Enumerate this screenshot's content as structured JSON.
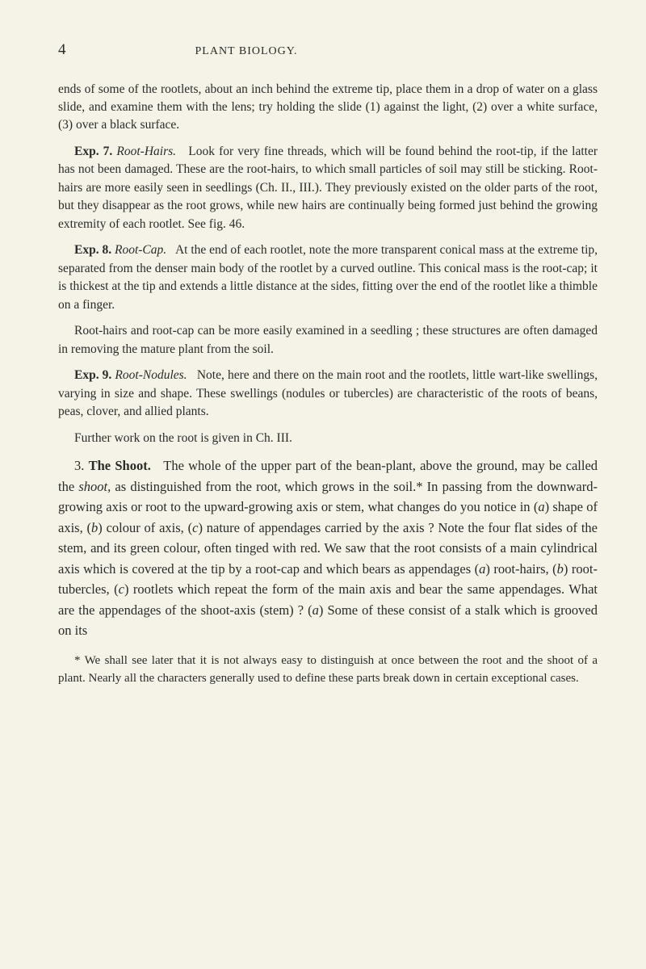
{
  "header": {
    "page_number": "4",
    "chapter_title": "PLANT BIOLOGY."
  },
  "para_intro": "ends of some of the rootlets, about an inch behind the extreme tip, place them in a drop of water on a glass slide, and examine them with the lens; try holding the slide (1) against the light, (2) over a white surface, (3) over a black surface.",
  "exp7": {
    "label": "Exp. 7.",
    "title": "Root-Hairs.",
    "text": "Look for very fine threads, which will be found behind the root-tip, if the latter has not been damaged. These are the root-hairs, to which small particles of soil may still be sticking. Root-hairs are more easily seen in seedlings (Ch. II., III.). They previously existed on the older parts of the root, but they disappear as the root grows, while new hairs are continually being formed just behind the growing extremity of each rootlet. See fig. 46."
  },
  "exp8": {
    "label": "Exp. 8.",
    "title": "Root-Cap.",
    "text1": "At the end of each rootlet, note the more transparent conical mass at the extreme tip, separated from the denser main body of the rootlet by a curved outline. This conical mass is the root-cap; it is thickest at the tip and extends a little distance at the sides, fitting over the end of the rootlet like a thimble on a finger.",
    "text2": "Root-hairs and root-cap can be more easily examined in a seedling ; these structures are often damaged in removing the mature plant from the soil."
  },
  "exp9": {
    "label": "Exp. 9.",
    "title": "Root-Nodules.",
    "text1": "Note, here and there on the main root and the rootlets, little wart-like swellings, varying in size and shape. These swellings (nodules or tubercles) are characteristic of the roots of beans, peas, clover, and allied plants.",
    "text2": "Further work on the root is given in Ch. III."
  },
  "section3": {
    "num": "3.",
    "name": "The Shoot.",
    "intro": "The whole of the upper part of the bean-plant, above the ground, may be called the ",
    "shoot": "shoot",
    "intro_cont": ", as distinguished from the root, which grows in the soil.* In passing from the downward-growing axis or root to the upward-growing axis or stem, what changes do you notice in (",
    "a1": "a",
    "intro_cont2": ") shape of axis, (",
    "b1": "b",
    "intro_cont3": ") colour of axis, (",
    "c1": "c",
    "intro_cont4": ") nature of appendages carried by the axis ? Note the four flat sides of the stem, and its green colour, often tinged with red. We saw that the root consists of a main cylindrical axis which is covered at the tip by a root-cap and which bears as appendages (",
    "a2": "a",
    "intro_cont5": ") root-hairs, (",
    "b2": "b",
    "intro_cont6": ") root-tubercles, (",
    "c2": "c",
    "intro_cont7": ") rootlets which repeat the form of the main axis and bear the same appendages. What are the appendages of the shoot-axis (stem) ? (",
    "a3": "a",
    "intro_cont8": ") Some of these consist of a stalk which is grooved on its"
  },
  "footnote": "* We shall see later that it is not always easy to distinguish at once between the root and the shoot of a plant. Nearly all the characters generally used to define these parts break down in certain exceptional cases."
}
